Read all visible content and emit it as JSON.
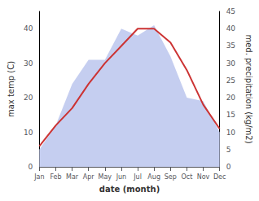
{
  "chart_data": {
    "type": "line",
    "xlabel": "date (month)",
    "ylabel": "max temp (C)",
    "y2label": "med. precipitation (kg/m2)",
    "categories": [
      "Jan",
      "Feb",
      "Mar",
      "Apr",
      "May",
      "Jun",
      "Jul",
      "Aug",
      "Sep",
      "Oct",
      "Nov",
      "Dec"
    ],
    "series": [
      {
        "type": "area",
        "axis": "y2",
        "color": "#c5cef0",
        "values": [
          5,
          12,
          24,
          31,
          31,
          40,
          38,
          41,
          32,
          20,
          19,
          10
        ]
      },
      {
        "type": "line",
        "color": "#cc3333",
        "values": [
          6,
          12,
          17,
          24,
          30,
          35,
          40,
          40,
          36,
          28,
          18,
          11
        ]
      }
    ],
    "ylim": [
      0,
      45
    ],
    "yticks": [
      0,
      10,
      20,
      30,
      40
    ],
    "y2lim": [
      0,
      45
    ],
    "y2ticks": [
      0,
      5,
      10,
      15,
      20,
      25,
      30,
      35,
      40,
      45
    ],
    "grid": false
  }
}
